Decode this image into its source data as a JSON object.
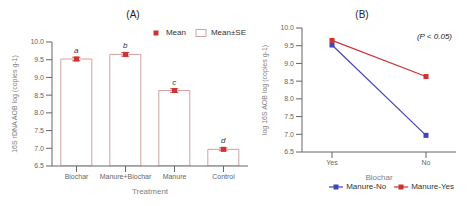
{
  "chart_data": [
    {
      "type": "bar",
      "title": "(A)",
      "categories": [
        "Biochar",
        "Manure+Biochar",
        "Manure",
        "Control"
      ],
      "series": [
        {
          "name": "Mean",
          "type": "scatter",
          "marker": "square",
          "color": "#cc3333",
          "values": [
            9.52,
            9.65,
            8.63,
            6.97
          ]
        },
        {
          "name": "Mean±SE",
          "type": "bar",
          "color": "#d4a0a0",
          "values": [
            9.52,
            9.65,
            8.63,
            6.97
          ],
          "errors": [
            0.05,
            0.05,
            0.05,
            0.04
          ]
        }
      ],
      "annotations": [
        "a",
        "b",
        "c",
        "d"
      ],
      "xlabel": "Treatment",
      "ylabel": "16S rDNA AOB log (copies g-1)",
      "ylim": [
        6.5,
        10.0
      ],
      "yticks": [
        6.5,
        {
          "value": 7.0,
          "label": "7.0"
        },
        7.5,
        {
          "value": 8.0,
          "label": "8.0"
        },
        8.5,
        {
          "value": 9.0,
          "label": "9.0"
        },
        9.5,
        {
          "value": 10.0,
          "label": "10.0"
        }
      ],
      "legend": "upper right",
      "grid": false
    },
    {
      "type": "line",
      "title": "(B)",
      "categories": [
        "Yes",
        "No"
      ],
      "series": [
        {
          "name": "Manure-No",
          "color": "#4444bb",
          "marker": "square",
          "values": [
            9.52,
            6.97
          ]
        },
        {
          "name": "Manure-Yes",
          "color": "#cc3333",
          "marker": "square",
          "values": [
            9.65,
            8.63
          ]
        }
      ],
      "xlabel": "Biochar",
      "ylabel": "log 16S AOB log (copies g-1)",
      "ylim": [
        6.5,
        10.0
      ],
      "yticks": [
        6.5,
        {
          "value": 7.0,
          "label": "7.0"
        },
        7.5,
        {
          "value": 8.0,
          "label": "8.0"
        },
        8.5,
        {
          "value": 9.0,
          "label": "9.0"
        },
        9.5,
        {
          "value": 10.0,
          "label": "10.0"
        }
      ],
      "annotation": "(P < 0.05)",
      "legend": "lower right",
      "grid": false
    }
  ]
}
